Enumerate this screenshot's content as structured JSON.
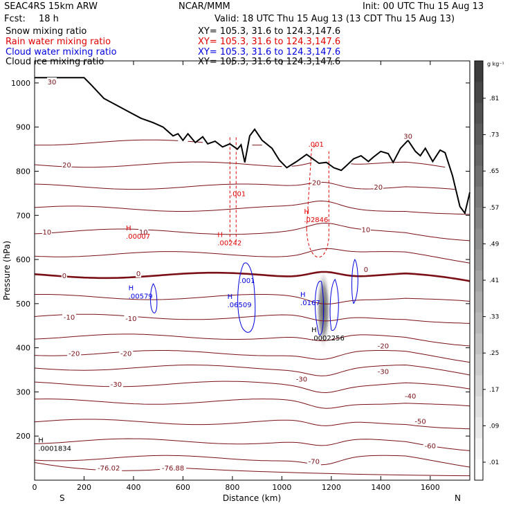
{
  "header": {
    "run": "SEAC4RS 15km ARW",
    "org": "NCAR/MMM",
    "init": "Init: 00 UTC Thu 15 Aug 13",
    "fcst_label": "Fcst:",
    "fcst_value": "18 h",
    "valid": "Valid: 18 UTC Thu 15 Aug 13 (13 CDT Thu 15 Aug 13)"
  },
  "fields": [
    {
      "name": "Snow mixing ratio",
      "xy": "XY= 105.3, 31.6 to 124.3,147.6",
      "color": "#000000"
    },
    {
      "name": "Rain water mixing ratio",
      "xy": "XY= 105.3, 31.6 to 124.3,147.6",
      "color": "#e00000"
    },
    {
      "name": "Cloud water mixing ratio",
      "xy": "XY= 105.3, 31.6 to 124.3,147.6",
      "color": "#0000e0"
    },
    {
      "name": "Cloud ice mixing ratio",
      "xy": "XY= 105.3, 31.6 to 124.3,147.6",
      "color": "#000000"
    }
  ],
  "colorbar": {
    "unit": "g kg⁻¹",
    "ticks": [
      ".01",
      ".09",
      ".17",
      ".25",
      ".33",
      ".41",
      ".49",
      ".57",
      ".65",
      ".73",
      ".81"
    ]
  },
  "chart_data": {
    "type": "cross-section",
    "xlabel": "Distance (km)",
    "ylabel": "Pressure (hPa)",
    "xlim": [
      0,
      1760
    ],
    "ylim": [
      1050,
      100
    ],
    "x_ticks": [
      0,
      200,
      400,
      600,
      800,
      1000,
      1200,
      1400,
      1600
    ],
    "y_ticks": [
      200,
      300,
      400,
      500,
      600,
      700,
      800,
      900,
      1000
    ],
    "x_end_labels": {
      "left": "S",
      "right": "N"
    },
    "temperature_labels": [
      {
        "text": "-76.02",
        "x": 300,
        "p": 128
      },
      {
        "text": "-76.88",
        "x": 560,
        "p": 128
      },
      {
        "text": "-70",
        "x": 1130,
        "p": 143
      },
      {
        "text": "-60",
        "x": 1600,
        "p": 178
      },
      {
        "text": "-50",
        "x": 1560,
        "p": 234
      },
      {
        "text": "-40",
        "x": 1520,
        "p": 291
      },
      {
        "text": "-30",
        "x": 330,
        "p": 318
      },
      {
        "text": "-30",
        "x": 1080,
        "p": 330
      },
      {
        "text": "-30",
        "x": 1410,
        "p": 347
      },
      {
        "text": "-20",
        "x": 160,
        "p": 388
      },
      {
        "text": "-20",
        "x": 370,
        "p": 388
      },
      {
        "text": "-20",
        "x": 1410,
        "p": 405
      },
      {
        "text": "-10",
        "x": 140,
        "p": 470
      },
      {
        "text": "-10",
        "x": 390,
        "p": 467
      },
      {
        "text": "0",
        "x": 120,
        "p": 564
      },
      {
        "text": "0",
        "x": 420,
        "p": 569
      },
      {
        "text": "0",
        "x": 1340,
        "p": 578
      },
      {
        "text": "10",
        "x": 50,
        "p": 663
      },
      {
        "text": "10",
        "x": 440,
        "p": 663
      },
      {
        "text": "10",
        "x": 1340,
        "p": 668
      },
      {
        "text": "20",
        "x": 130,
        "p": 815
      },
      {
        "text": "20",
        "x": 1140,
        "p": 775
      },
      {
        "text": "20",
        "x": 1390,
        "p": 765
      },
      {
        "text": "30",
        "x": 70,
        "p": 1003
      },
      {
        "text": "30",
        "x": 1510,
        "p": 880
      }
    ],
    "temperature_levels": [
      {
        "t": -70,
        "base": 150,
        "bold": false
      },
      {
        "t": -60,
        "base": 188,
        "bold": false
      },
      {
        "t": -50,
        "base": 232,
        "bold": false
      },
      {
        "t": -40,
        "base": 278,
        "bold": false
      },
      {
        "t": -30,
        "base": 318,
        "bold": false
      },
      {
        "t": -25,
        "base": 355,
        "bold": false
      },
      {
        "t": -20,
        "base": 388,
        "bold": false
      },
      {
        "t": -15,
        "base": 425,
        "bold": false
      },
      {
        "t": -10,
        "base": 470,
        "bold": false
      },
      {
        "t": -5,
        "base": 515,
        "bold": false
      },
      {
        "t": 0,
        "base": 564,
        "bold": true
      },
      {
        "t": 5,
        "base": 612,
        "bold": false
      },
      {
        "t": 10,
        "base": 663,
        "bold": false
      },
      {
        "t": 15,
        "base": 715,
        "bold": false
      },
      {
        "t": 20,
        "base": 765,
        "bold": false
      },
      {
        "t": 25,
        "base": 815,
        "bold": false
      },
      {
        "t": 30,
        "base": 865,
        "bold": false
      }
    ],
    "terrain": [
      [
        0,
        1012
      ],
      [
        200,
        1012
      ],
      [
        230,
        995
      ],
      [
        280,
        965
      ],
      [
        330,
        950
      ],
      [
        380,
        935
      ],
      [
        430,
        920
      ],
      [
        480,
        910
      ],
      [
        520,
        900
      ],
      [
        560,
        880
      ],
      [
        580,
        885
      ],
      [
        600,
        870
      ],
      [
        620,
        885
      ],
      [
        650,
        865
      ],
      [
        680,
        878
      ],
      [
        700,
        862
      ],
      [
        730,
        868
      ],
      [
        760,
        855
      ],
      [
        790,
        862
      ],
      [
        820,
        850
      ],
      [
        835,
        860
      ],
      [
        850,
        820
      ],
      [
        870,
        880
      ],
      [
        890,
        895
      ],
      [
        920,
        870
      ],
      [
        960,
        852
      ],
      [
        990,
        825
      ],
      [
        1020,
        808
      ],
      [
        1060,
        822
      ],
      [
        1100,
        838
      ],
      [
        1120,
        830
      ],
      [
        1150,
        818
      ],
      [
        1180,
        820
      ],
      [
        1210,
        808
      ],
      [
        1240,
        802
      ],
      [
        1260,
        812
      ],
      [
        1290,
        828
      ],
      [
        1320,
        835
      ],
      [
        1350,
        822
      ],
      [
        1370,
        832
      ],
      [
        1400,
        845
      ],
      [
        1430,
        840
      ],
      [
        1450,
        820
      ],
      [
        1480,
        852
      ],
      [
        1510,
        870
      ],
      [
        1540,
        845
      ],
      [
        1560,
        835
      ],
      [
        1580,
        852
      ],
      [
        1610,
        822
      ],
      [
        1640,
        848
      ],
      [
        1660,
        842
      ],
      [
        1690,
        790
      ],
      [
        1720,
        720
      ],
      [
        1740,
        705
      ],
      [
        1760,
        752
      ]
    ],
    "cloud_ice_max": {
      "label": ".0001834",
      "x": 65,
      "p": 170
    },
    "snow_max": {
      "label": ".0002256",
      "x": 1170,
      "p": 420
    },
    "cloud_water_maxima": [
      {
        "label": ".00579",
        "x": 430,
        "p": 515
      },
      {
        "label": ".06509",
        "x": 830,
        "p": 495
      },
      {
        "label": ".001",
        "x": 850,
        "p": 553
      },
      {
        "label": ".0167",
        "x": 1125,
        "p": 500
      }
    ],
    "rain_maxima": [
      {
        "label": ".00007",
        "x": 420,
        "p": 650
      },
      {
        "label": ".00242",
        "x": 790,
        "p": 635
      },
      {
        "label": ".02846",
        "x": 1140,
        "p": 688
      },
      {
        "label": ".001",
        "x": 815,
        "p": 750
      },
      {
        "label": ".001",
        "x": 1130,
        "p": 862
      }
    ]
  }
}
